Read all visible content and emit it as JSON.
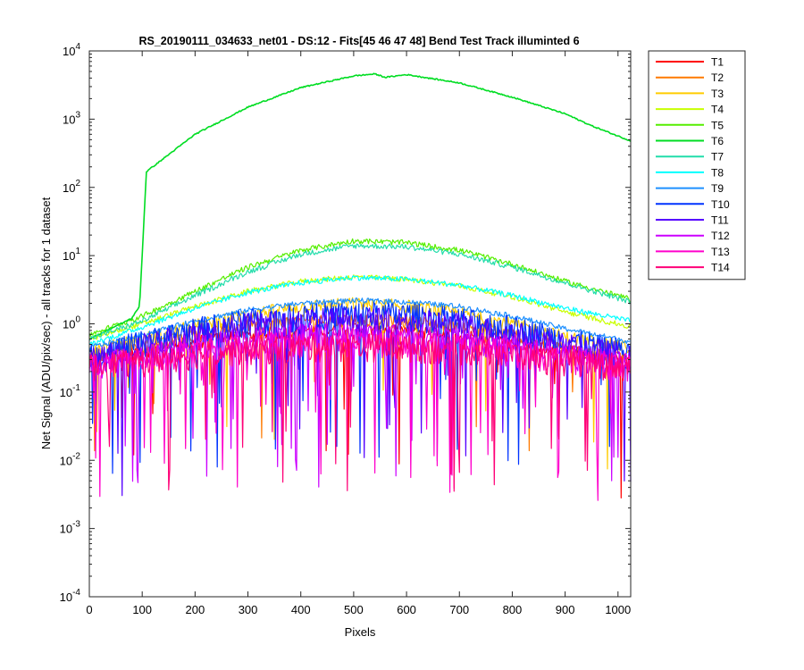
{
  "chart_data": {
    "type": "line",
    "title": "RS_20190111_034633_net01 - DS:12 - Fits[45  46  47  48]   Bend Test       Track illuminted 6",
    "xlabel": "Pixels",
    "ylabel": "Net Signal (ADU/pix/sec) - all tracks for 1 dataset",
    "xlim": [
      0,
      1024
    ],
    "ylim": [
      0.0001,
      10000
    ],
    "yscale": "log",
    "grid": false,
    "legend_position": "outside-right-top",
    "x_ticks": [
      0,
      100,
      200,
      300,
      400,
      500,
      600,
      700,
      800,
      900,
      1000
    ],
    "y_ticks": [
      {
        "value": 0.0001,
        "base": "10",
        "exp": "-4"
      },
      {
        "value": 0.001,
        "base": "10",
        "exp": "-3"
      },
      {
        "value": 0.01,
        "base": "10",
        "exp": "-2"
      },
      {
        "value": 0.1,
        "base": "10",
        "exp": "-1"
      },
      {
        "value": 1,
        "base": "10",
        "exp": "0"
      },
      {
        "value": 10,
        "base": "10",
        "exp": "1"
      },
      {
        "value": 100,
        "base": "10",
        "exp": "2"
      },
      {
        "value": 1000,
        "base": "10",
        "exp": "3"
      },
      {
        "value": 10000,
        "base": "10",
        "exp": "4"
      }
    ],
    "series": [
      {
        "name": "T1",
        "color": "#ff0000",
        "x": [
          0,
          100,
          200,
          300,
          400,
          500,
          600,
          700,
          800,
          900,
          1024
        ],
        "y": [
          0.3,
          0.4,
          0.55,
          0.7,
          0.8,
          0.85,
          0.8,
          0.7,
          0.55,
          0.4,
          0.3
        ]
      },
      {
        "name": "T2",
        "color": "#ff7a00",
        "x": [
          0,
          100,
          200,
          300,
          400,
          500,
          600,
          700,
          800,
          900,
          1024
        ],
        "y": [
          0.3,
          0.45,
          0.7,
          0.95,
          1.1,
          1.15,
          1.1,
          0.95,
          0.7,
          0.45,
          0.3
        ]
      },
      {
        "name": "T3",
        "color": "#ffcc00",
        "x": [
          0,
          100,
          200,
          300,
          400,
          500,
          600,
          700,
          800,
          900,
          1024
        ],
        "y": [
          0.4,
          0.6,
          0.95,
          1.4,
          1.8,
          2.0,
          1.85,
          1.45,
          1.0,
          0.65,
          0.45
        ]
      },
      {
        "name": "T4",
        "color": "#c8ff00",
        "x": [
          0,
          100,
          200,
          300,
          400,
          500,
          600,
          700,
          800,
          900,
          1024
        ],
        "y": [
          0.6,
          1.0,
          1.8,
          3.0,
          4.2,
          4.9,
          4.5,
          3.6,
          2.5,
          1.5,
          0.9
        ]
      },
      {
        "name": "T5",
        "color": "#55ee00",
        "x": [
          0,
          100,
          200,
          300,
          400,
          500,
          600,
          700,
          800,
          900,
          1024
        ],
        "y": [
          0.7,
          1.3,
          3.0,
          6.8,
          12,
          16.5,
          15.5,
          12,
          7.5,
          4.2,
          2.3
        ]
      },
      {
        "name": "T6",
        "color": "#00dd22",
        "x": [
          0,
          80,
          95,
          108,
          130,
          200,
          300,
          400,
          500,
          540,
          560,
          600,
          700,
          800,
          900,
          950,
          1024
        ],
        "y": [
          0.6,
          1.2,
          1.8,
          170,
          230,
          600,
          1500,
          2900,
          4300,
          4600,
          4100,
          4500,
          3400,
          2100,
          1200,
          800,
          480
        ]
      },
      {
        "name": "T7",
        "color": "#22ddaa",
        "x": [
          0,
          100,
          200,
          300,
          400,
          500,
          600,
          700,
          800,
          900,
          1024
        ],
        "y": [
          0.6,
          1.1,
          2.6,
          5.8,
          10.5,
          14,
          13.5,
          10.5,
          6.8,
          4.0,
          2.1
        ]
      },
      {
        "name": "T8",
        "color": "#00ffff",
        "x": [
          0,
          100,
          200,
          300,
          400,
          500,
          600,
          700,
          800,
          900,
          1024
        ],
        "y": [
          0.5,
          0.9,
          1.7,
          2.9,
          4.0,
          4.8,
          4.5,
          3.7,
          2.6,
          1.7,
          1.1
        ]
      },
      {
        "name": "T9",
        "color": "#1e90ff",
        "x": [
          0,
          100,
          200,
          300,
          400,
          500,
          600,
          700,
          800,
          900,
          1024
        ],
        "y": [
          0.45,
          0.7,
          1.1,
          1.6,
          2.0,
          2.2,
          2.1,
          1.8,
          1.3,
          0.85,
          0.55
        ]
      },
      {
        "name": "T10",
        "color": "#0033ff",
        "x": [
          0,
          100,
          200,
          300,
          400,
          500,
          600,
          700,
          800,
          900,
          1024
        ],
        "y": [
          0.35,
          0.55,
          0.85,
          1.15,
          1.35,
          1.45,
          1.4,
          1.2,
          0.9,
          0.6,
          0.4
        ]
      },
      {
        "name": "T11",
        "color": "#5500ff",
        "x": [
          0,
          100,
          200,
          300,
          400,
          500,
          600,
          700,
          800,
          900,
          1024
        ],
        "y": [
          0.3,
          0.5,
          0.75,
          1.0,
          1.15,
          1.2,
          1.15,
          1.0,
          0.75,
          0.5,
          0.35
        ]
      },
      {
        "name": "T12",
        "color": "#cc00ff",
        "x": [
          0,
          100,
          200,
          300,
          400,
          500,
          600,
          700,
          800,
          900,
          1024
        ],
        "y": [
          0.25,
          0.35,
          0.5,
          0.62,
          0.7,
          0.72,
          0.7,
          0.62,
          0.5,
          0.36,
          0.26
        ]
      },
      {
        "name": "T13",
        "color": "#ff00cc",
        "x": [
          0,
          100,
          200,
          300,
          400,
          500,
          600,
          700,
          800,
          900,
          1024
        ],
        "y": [
          0.25,
          0.32,
          0.42,
          0.5,
          0.55,
          0.57,
          0.55,
          0.5,
          0.42,
          0.32,
          0.25
        ]
      },
      {
        "name": "T14",
        "color": "#ff0077",
        "x": [
          0,
          100,
          200,
          300,
          400,
          500,
          600,
          700,
          800,
          900,
          1024
        ],
        "y": [
          0.25,
          0.3,
          0.38,
          0.44,
          0.48,
          0.5,
          0.48,
          0.44,
          0.38,
          0.3,
          0.25
        ]
      }
    ]
  }
}
